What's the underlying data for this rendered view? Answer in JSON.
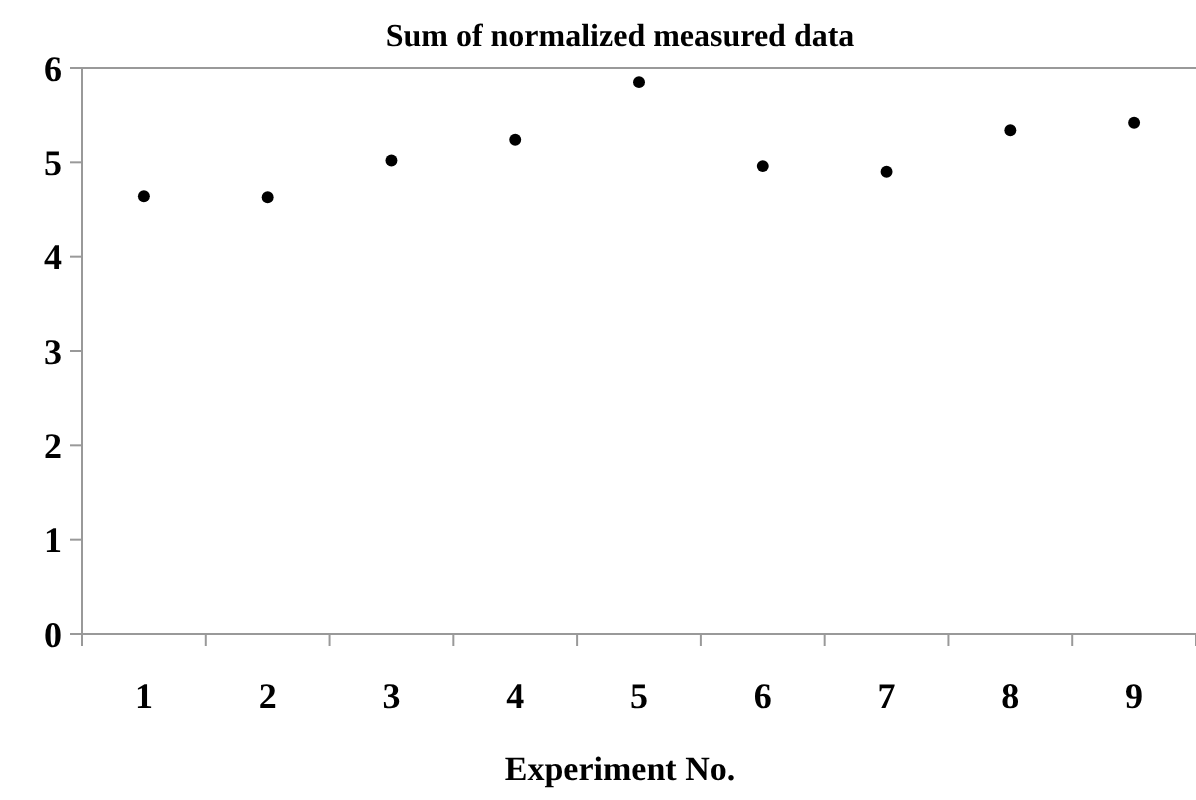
{
  "chart_data": {
    "type": "scatter",
    "title": "Sum of  normalized measured data",
    "xlabel": "Experiment No.",
    "categories": [
      "1",
      "2",
      "3",
      "4",
      "5",
      "6",
      "7",
      "8",
      "9"
    ],
    "values": [
      4.64,
      4.63,
      5.02,
      5.24,
      5.85,
      4.96,
      4.9,
      5.34,
      5.42
    ],
    "color": "#000000",
    "marker": "circle",
    "ylim": [
      0,
      6
    ],
    "yticks": [
      0,
      1,
      2,
      3,
      4,
      5,
      6
    ],
    "grid": false
  }
}
